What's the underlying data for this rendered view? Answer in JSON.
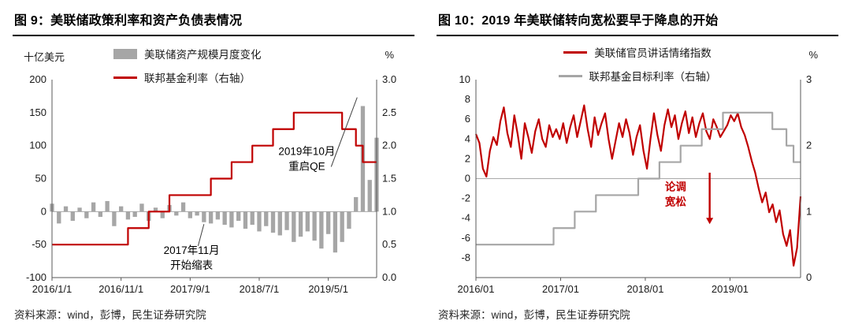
{
  "chart_data": [
    {
      "id": "figure9",
      "type": "bar+line combo",
      "title": "图 9：美联储政策利率和资产负债表情况",
      "source": "资料来源：wind，彭博，民生证券研究院",
      "left_axis": {
        "label": "十亿美元",
        "min": -100,
        "max": 200,
        "ticks": [
          "200",
          "150",
          "100",
          "50",
          "0",
          "-50",
          "-100"
        ]
      },
      "right_axis": {
        "label": "%",
        "min": 0,
        "max": 3,
        "ticks": [
          "3.0",
          "2.5",
          "2.0",
          "1.5",
          "1.0",
          "0.5",
          "0.0"
        ]
      },
      "x_axis": {
        "tick_labels": [
          "2016/1/1",
          "2016/11/1",
          "2017/9/1",
          "2018/7/1",
          "2019/5/1"
        ],
        "tick_months": [
          0,
          10,
          20,
          30,
          40
        ],
        "month_span": 47
      },
      "series": [
        {
          "name": "美联储资产规模月度变化",
          "type": "bar",
          "axis": "left",
          "color": "#a6a6a6",
          "values": [
            12,
            -18,
            8,
            -14,
            6,
            -10,
            14,
            -8,
            16,
            -22,
            8,
            -12,
            -8,
            12,
            -14,
            6,
            -10,
            10,
            -6,
            14,
            -10,
            -6,
            -16,
            -18,
            -12,
            -20,
            -24,
            -14,
            -26,
            -20,
            -30,
            -22,
            -32,
            -36,
            -28,
            -46,
            -38,
            -30,
            -44,
            -56,
            -34,
            -62,
            -46,
            -26,
            22,
            160,
            48,
            112
          ]
        },
        {
          "name": "联邦基金利率（右轴）",
          "type": "step-line",
          "axis": "right",
          "color": "#c00000",
          "values": [
            0.5,
            0.5,
            0.5,
            0.5,
            0.5,
            0.5,
            0.5,
            0.5,
            0.5,
            0.5,
            0.5,
            0.75,
            0.75,
            0.75,
            1.0,
            1.0,
            1.0,
            1.25,
            1.25,
            1.25,
            1.25,
            1.25,
            1.25,
            1.5,
            1.5,
            1.5,
            1.75,
            1.75,
            1.75,
            2.0,
            2.0,
            2.0,
            2.25,
            2.25,
            2.25,
            2.5,
            2.5,
            2.5,
            2.5,
            2.5,
            2.5,
            2.5,
            2.25,
            2.25,
            2.0,
            1.75,
            1.75,
            1.75
          ]
        }
      ],
      "annotations": [
        {
          "text_lines": [
            "2019年10月",
            "重启QE"
          ],
          "color": "#000000",
          "fx": 0.785,
          "fy": 0.38,
          "line": {
            "x1": 0.86,
            "y1": 0.44,
            "x2": 0.94,
            "y2": 0.09
          }
        },
        {
          "text_lines": [
            "2017年11月",
            "开始缩表"
          ],
          "color": "#000000",
          "fx": 0.43,
          "fy": 0.88,
          "line": {
            "x1": 0.45,
            "y1": 0.84,
            "x2": 0.468,
            "y2": 0.73
          }
        }
      ]
    },
    {
      "id": "figure10",
      "type": "line",
      "title": "图 10：2019 年美联储转向宽松要早于降息的开始",
      "source": "资料来源：wind，彭博，民生证券研究院",
      "left_axis": {
        "label": "",
        "min": -10,
        "max": 10,
        "ticks": [
          "10",
          "8",
          "6",
          "4",
          "2",
          "0",
          "-2",
          "-4",
          "-6",
          "-8"
        ]
      },
      "right_axis": {
        "label": "%",
        "min": 0,
        "max": 3,
        "ticks": [
          "3",
          "2",
          "1",
          "0"
        ]
      },
      "x_axis": {
        "tick_labels": [
          "2016/01",
          "2017/01",
          "2018/01",
          "2019/01"
        ],
        "tick_months": [
          0,
          12,
          24,
          36
        ],
        "month_span": 46
      },
      "series": [
        {
          "name": "美联储官员讲话情绪指数",
          "type": "line",
          "axis": "left",
          "color": "#c00000",
          "values": [
            4.5,
            3.6,
            1.0,
            0.2,
            2.8,
            4.2,
            3.4,
            5.8,
            7.2,
            4.6,
            3.2,
            6.4,
            4.4,
            2.0,
            5.6,
            4.2,
            2.6,
            4.8,
            6.0,
            4.0,
            3.2,
            5.4,
            4.2,
            5.0,
            4.0,
            5.6,
            3.6,
            5.2,
            6.4,
            4.2,
            5.8,
            7.4,
            5.0,
            3.2,
            6.2,
            4.4,
            5.6,
            6.6,
            4.0,
            2.0,
            3.8,
            5.6,
            4.2,
            6.0,
            4.6,
            2.4,
            4.2,
            5.4,
            2.8,
            1.0,
            4.0,
            6.6,
            4.4,
            2.8,
            5.4,
            7.0,
            5.2,
            6.4,
            4.0,
            5.6,
            6.8,
            4.6,
            6.2,
            4.2,
            5.6,
            6.6,
            4.8,
            4.0,
            6.0,
            5.2,
            4.2,
            4.8,
            5.4,
            6.4,
            5.8,
            6.6,
            5.2,
            4.4,
            3.2,
            1.8,
            0.6,
            -1.0,
            -2.4,
            -1.4,
            -3.4,
            -2.6,
            -4.4,
            -3.2,
            -5.6,
            -6.8,
            -5.2,
            -8.8,
            -7.0,
            -1.8
          ]
        },
        {
          "name": "联邦基金目标利率（右轴）",
          "type": "step-line",
          "axis": "right",
          "color": "#a6a6a6",
          "values": [
            0.5,
            0.5,
            0.5,
            0.5,
            0.5,
            0.5,
            0.5,
            0.5,
            0.5,
            0.5,
            0.5,
            0.75,
            0.75,
            0.75,
            1.0,
            1.0,
            1.0,
            1.25,
            1.25,
            1.25,
            1.25,
            1.25,
            1.25,
            1.5,
            1.5,
            1.5,
            1.75,
            1.75,
            1.75,
            2.0,
            2.0,
            2.0,
            2.25,
            2.25,
            2.25,
            2.5,
            2.5,
            2.5,
            2.5,
            2.5,
            2.5,
            2.5,
            2.25,
            2.25,
            2.0,
            1.75,
            1.75
          ]
        }
      ],
      "annotations": [
        {
          "text_lines": [
            "论调",
            "宽松"
          ],
          "color": "#c00000",
          "bold": true,
          "fx": 0.615,
          "fy": 0.56
        },
        {
          "arrow": {
            "x": 0.72,
            "y1": 0.47,
            "y2": 0.73
          },
          "color": "#c00000"
        }
      ]
    }
  ]
}
